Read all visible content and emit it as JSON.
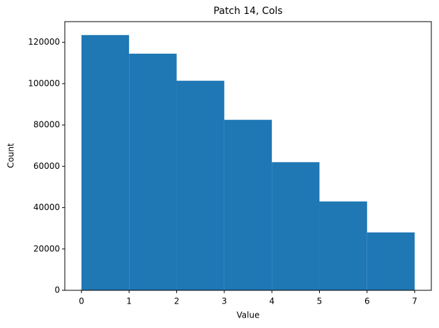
{
  "chart_data": {
    "type": "histogram",
    "title": "Patch 14, Cols",
    "x_label": "Value",
    "y_label": "Count",
    "bins": [
      0,
      1,
      2,
      3,
      4,
      5,
      6,
      7
    ],
    "values": [
      123500,
      114500,
      101400,
      82500,
      62000,
      43000,
      28000
    ],
    "color": "#1f77b4",
    "xlim": [
      -0.35,
      7.35
    ],
    "xticks": [
      0,
      1,
      2,
      3,
      4,
      5,
      6,
      7
    ],
    "ylim": [
      0,
      130000
    ],
    "yticks": [
      0,
      20000,
      40000,
      60000,
      80000,
      100000,
      120000
    ],
    "grid": false
  }
}
